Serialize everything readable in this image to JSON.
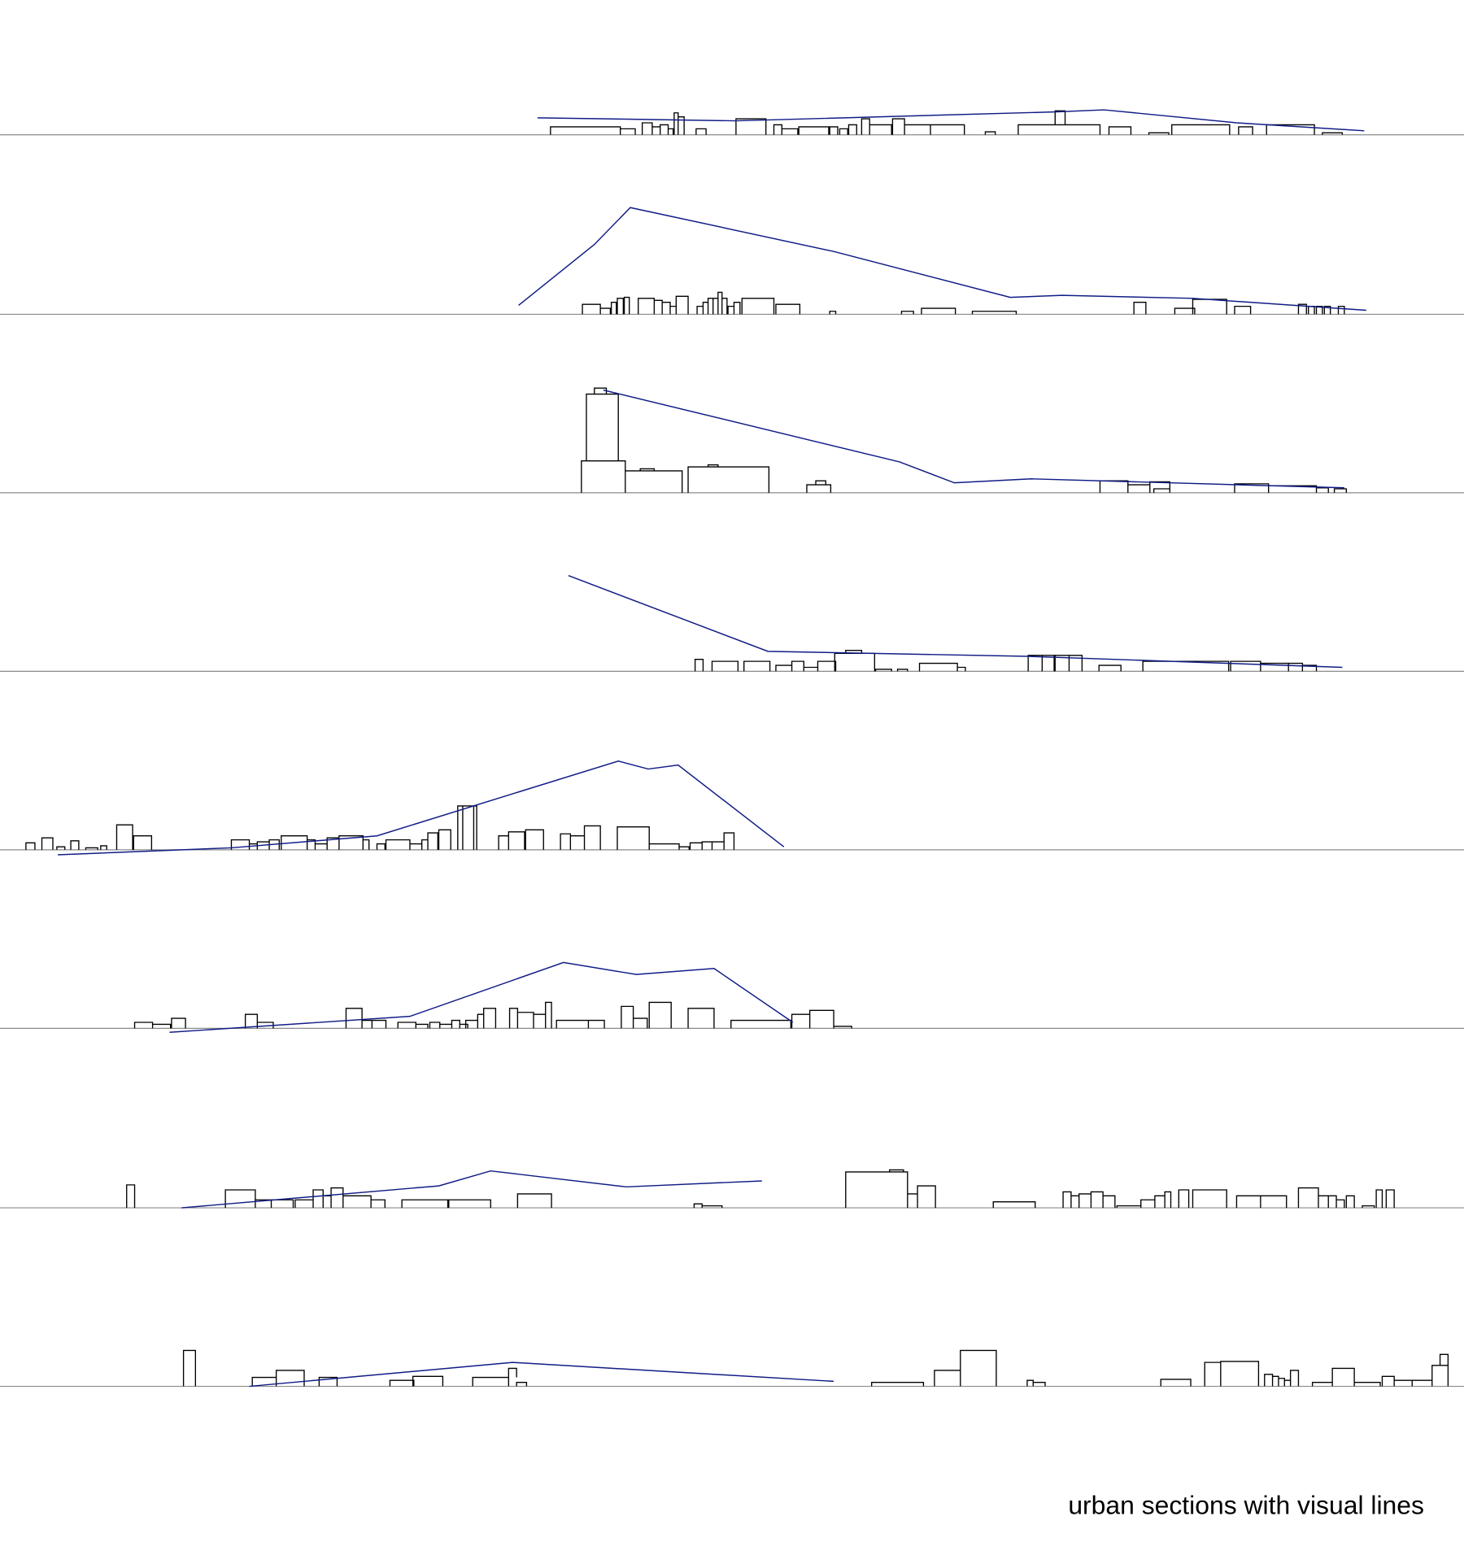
{
  "caption": "urban sections with visual lines"
}
